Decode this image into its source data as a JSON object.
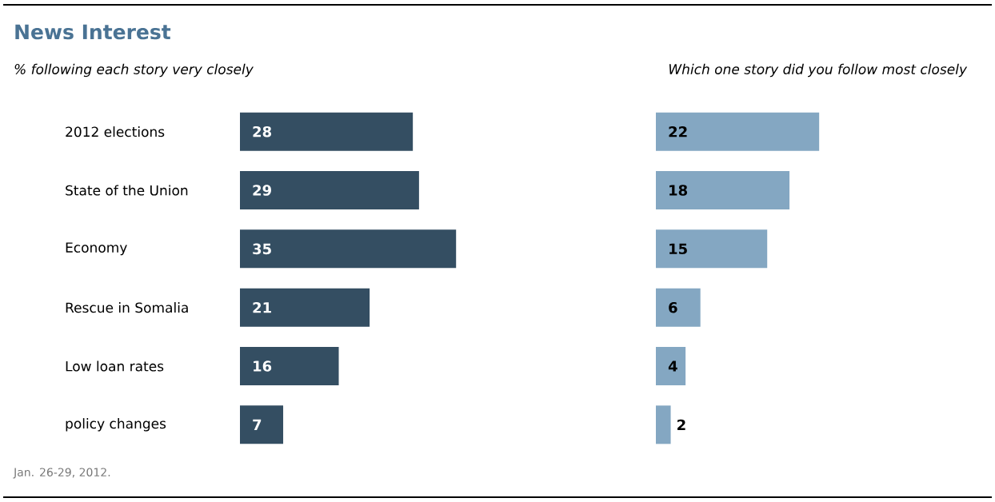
{
  "chart_data": [
    {
      "type": "bar",
      "orientation": "horizontal",
      "title": "News Interest",
      "subtitle": "% following each story very closely",
      "categories": [
        "2012 elections",
        "State of the Union",
        "Economy",
        "Rescue in Somalia",
        "Low loan rates",
        "policy changes"
      ],
      "values": [
        28,
        29,
        35,
        21,
        16,
        7
      ],
      "color": "#344e62",
      "data_labels": true,
      "tick_labels": "y",
      "annotations": [
        "Jan. 26-29, 2012."
      ]
    },
    {
      "type": "bar",
      "orientation": "horizontal",
      "subtitle": "Which one story did you follow most closely",
      "categories": [
        null,
        null,
        null,
        null,
        null,
        null
      ],
      "values": [
        22,
        18,
        15,
        6,
        4,
        2
      ],
      "color": "#84a7c2",
      "data_labels": true,
      "tick_labels": false
    }
  ]
}
